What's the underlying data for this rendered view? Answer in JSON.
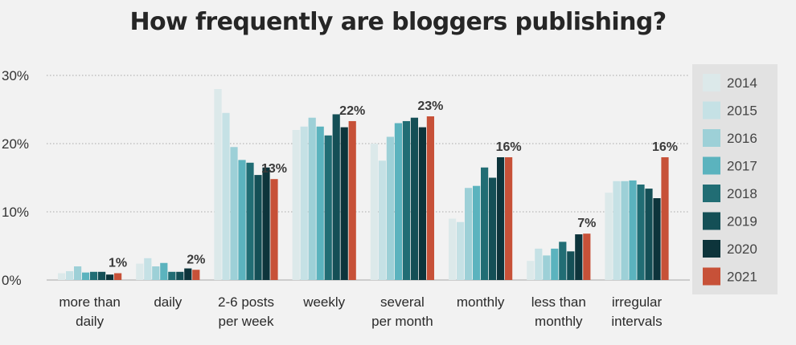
{
  "chart_data": {
    "type": "bar",
    "title": "How frequently are bloggers publishing?",
    "xlabel": "",
    "ylabel": "",
    "ylim": [
      0,
      30
    ],
    "yticks": [
      "0%",
      "10%",
      "20%",
      "30%"
    ],
    "grid": "horizontal dotted",
    "legend_position": "right",
    "categories": [
      [
        "more than",
        "daily"
      ],
      [
        "daily"
      ],
      [
        "2-6 posts",
        "per week"
      ],
      [
        "weekly"
      ],
      [
        "several",
        "per month"
      ],
      [
        "monthly"
      ],
      [
        "less than",
        "monthly"
      ],
      [
        "irregular",
        "intervals"
      ]
    ],
    "series": [
      {
        "name": "2014",
        "color": "#dce9ea",
        "values": [
          1.0,
          2.4,
          28.0,
          22.0,
          20.0,
          9.0,
          2.8,
          12.8
        ]
      },
      {
        "name": "2015",
        "color": "#c5e1e5",
        "values": [
          1.3,
          3.2,
          24.5,
          22.5,
          17.5,
          8.5,
          4.6,
          14.5
        ]
      },
      {
        "name": "2016",
        "color": "#9dd0d7",
        "values": [
          2.0,
          2.0,
          19.5,
          23.8,
          21.0,
          13.5,
          3.6,
          14.5
        ]
      },
      {
        "name": "2017",
        "color": "#5bb3be",
        "values": [
          1.1,
          2.5,
          17.6,
          22.5,
          23.0,
          13.8,
          4.6,
          14.6
        ]
      },
      {
        "name": "2018",
        "color": "#216d74",
        "values": [
          1.2,
          1.2,
          17.2,
          21.2,
          23.3,
          16.5,
          5.6,
          14.0
        ]
      },
      {
        "name": "2019",
        "color": "#144f56",
        "values": [
          1.2,
          1.2,
          15.4,
          24.3,
          23.8,
          15.0,
          4.2,
          13.4
        ]
      },
      {
        "name": "2020",
        "color": "#0d343b",
        "values": [
          0.8,
          1.7,
          16.5,
          22.4,
          22.4,
          18.0,
          6.7,
          12.0
        ]
      },
      {
        "name": "2021",
        "color": "#c75138",
        "values": [
          1.0,
          1.5,
          14.8,
          23.3,
          24.0,
          18.0,
          6.8,
          18.0
        ]
      }
    ],
    "annotations": [
      "1%",
      "2%",
      "13%",
      "22%",
      "23%",
      "16%",
      "7%",
      "16%"
    ]
  }
}
